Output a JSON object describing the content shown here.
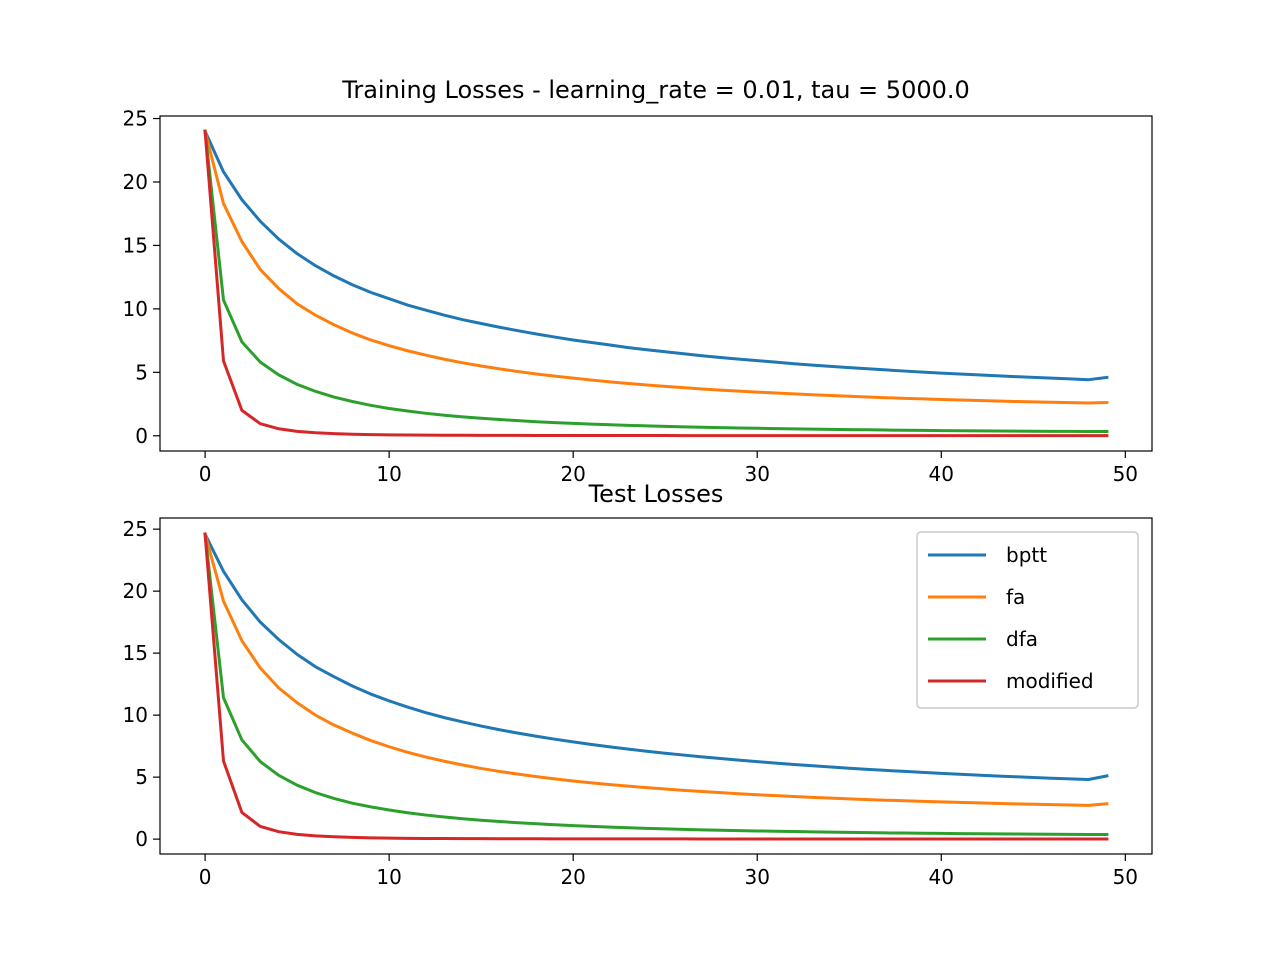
{
  "chart_data": [
    {
      "type": "line",
      "title": "Training Losses - learning_rate = 0.01, tau = 5000.0",
      "xlabel": "",
      "ylabel": "",
      "xlim": [
        -2.45,
        51.45
      ],
      "ylim": [
        -1.2,
        25.2
      ],
      "xticks": [
        0,
        10,
        20,
        30,
        40,
        50
      ],
      "yticks": [
        0,
        5,
        10,
        15,
        20,
        25
      ],
      "legend": false,
      "grid": false,
      "x": [
        0,
        1,
        2,
        3,
        4,
        5,
        6,
        7,
        8,
        9,
        10,
        11,
        12,
        13,
        14,
        15,
        16,
        17,
        18,
        19,
        20,
        21,
        22,
        23,
        24,
        25,
        26,
        27,
        28,
        29,
        30,
        31,
        32,
        33,
        34,
        35,
        36,
        37,
        38,
        39,
        40,
        41,
        42,
        43,
        44,
        45,
        46,
        47,
        48,
        49
      ],
      "series": [
        {
          "name": "bptt",
          "color": "#1f77b4",
          "values": [
            24.0,
            20.8,
            18.6,
            16.9,
            15.5,
            14.35,
            13.4,
            12.6,
            11.9,
            11.3,
            10.8,
            10.3,
            9.9,
            9.5,
            9.15,
            8.85,
            8.55,
            8.28,
            8.02,
            7.78,
            7.55,
            7.35,
            7.15,
            6.95,
            6.78,
            6.62,
            6.46,
            6.31,
            6.17,
            6.04,
            5.92,
            5.8,
            5.68,
            5.57,
            5.47,
            5.37,
            5.28,
            5.19,
            5.1,
            5.02,
            4.94,
            4.87,
            4.8,
            4.73,
            4.66,
            4.6,
            4.54,
            4.48,
            4.42,
            4.6
          ]
        },
        {
          "name": "fa",
          "color": "#ff7f0e",
          "values": [
            24.0,
            18.3,
            15.3,
            13.1,
            11.6,
            10.4,
            9.5,
            8.75,
            8.1,
            7.55,
            7.1,
            6.7,
            6.35,
            6.03,
            5.75,
            5.5,
            5.27,
            5.06,
            4.87,
            4.7,
            4.54,
            4.39,
            4.25,
            4.12,
            4.0,
            3.89,
            3.79,
            3.69,
            3.6,
            3.52,
            3.44,
            3.37,
            3.3,
            3.23,
            3.17,
            3.11,
            3.06,
            3.0,
            2.95,
            2.91,
            2.86,
            2.82,
            2.78,
            2.74,
            2.7,
            2.67,
            2.64,
            2.61,
            2.58,
            2.62
          ]
        },
        {
          "name": "dfa",
          "color": "#2ca02c",
          "values": [
            24.0,
            10.7,
            7.4,
            5.8,
            4.8,
            4.05,
            3.5,
            3.05,
            2.7,
            2.4,
            2.15,
            1.95,
            1.77,
            1.62,
            1.49,
            1.38,
            1.28,
            1.19,
            1.11,
            1.04,
            0.98,
            0.92,
            0.87,
            0.82,
            0.78,
            0.74,
            0.7,
            0.67,
            0.64,
            0.61,
            0.59,
            0.56,
            0.54,
            0.52,
            0.5,
            0.48,
            0.47,
            0.45,
            0.44,
            0.43,
            0.41,
            0.4,
            0.39,
            0.38,
            0.37,
            0.36,
            0.35,
            0.35,
            0.34,
            0.34
          ]
        },
        {
          "name": "modified",
          "color": "#d62728",
          "values": [
            24.0,
            5.9,
            2.0,
            0.95,
            0.55,
            0.35,
            0.24,
            0.17,
            0.12,
            0.09,
            0.07,
            0.06,
            0.05,
            0.04,
            0.04,
            0.03,
            0.03,
            0.03,
            0.02,
            0.02,
            0.02,
            0.02,
            0.02,
            0.02,
            0.02,
            0.02,
            0.01,
            0.01,
            0.01,
            0.01,
            0.01,
            0.01,
            0.01,
            0.01,
            0.01,
            0.01,
            0.01,
            0.01,
            0.01,
            0.01,
            0.01,
            0.01,
            0.01,
            0.01,
            0.01,
            0.01,
            0.01,
            0.01,
            0.01,
            0.01
          ]
        }
      ]
    },
    {
      "type": "line",
      "title": "Test Losses",
      "xlabel": "",
      "ylabel": "",
      "xlim": [
        -2.45,
        51.45
      ],
      "ylim": [
        -1.2,
        25.9
      ],
      "xticks": [
        0,
        10,
        20,
        30,
        40,
        50
      ],
      "yticks": [
        0,
        5,
        10,
        15,
        20,
        25
      ],
      "legend": true,
      "legend_position": "top-right",
      "grid": false,
      "x": [
        0,
        1,
        2,
        3,
        4,
        5,
        6,
        7,
        8,
        9,
        10,
        11,
        12,
        13,
        14,
        15,
        16,
        17,
        18,
        19,
        20,
        21,
        22,
        23,
        24,
        25,
        26,
        27,
        28,
        29,
        30,
        31,
        32,
        33,
        34,
        35,
        36,
        37,
        38,
        39,
        40,
        41,
        42,
        43,
        44,
        45,
        46,
        47,
        48,
        49
      ],
      "series": [
        {
          "name": "bptt",
          "color": "#1f77b4",
          "values": [
            24.6,
            21.6,
            19.3,
            17.5,
            16.1,
            14.9,
            13.9,
            13.1,
            12.35,
            11.7,
            11.15,
            10.65,
            10.2,
            9.8,
            9.45,
            9.12,
            8.82,
            8.55,
            8.3,
            8.06,
            7.84,
            7.63,
            7.44,
            7.26,
            7.09,
            6.93,
            6.78,
            6.63,
            6.5,
            6.37,
            6.25,
            6.13,
            6.02,
            5.92,
            5.82,
            5.72,
            5.63,
            5.54,
            5.46,
            5.38,
            5.3,
            5.23,
            5.16,
            5.09,
            5.03,
            4.97,
            4.91,
            4.86,
            4.81,
            5.1
          ]
        },
        {
          "name": "fa",
          "color": "#ff7f0e",
          "values": [
            24.6,
            19.2,
            16.0,
            13.8,
            12.2,
            11.0,
            10.0,
            9.2,
            8.55,
            7.95,
            7.45,
            7.0,
            6.62,
            6.28,
            5.98,
            5.7,
            5.46,
            5.24,
            5.04,
            4.86,
            4.69,
            4.54,
            4.4,
            4.27,
            4.15,
            4.04,
            3.93,
            3.84,
            3.75,
            3.66,
            3.58,
            3.51,
            3.44,
            3.37,
            3.31,
            3.25,
            3.19,
            3.14,
            3.09,
            3.04,
            3.0,
            2.96,
            2.92,
            2.88,
            2.84,
            2.81,
            2.78,
            2.75,
            2.72,
            2.85
          ]
        },
        {
          "name": "dfa",
          "color": "#2ca02c",
          "values": [
            24.6,
            11.4,
            8.0,
            6.25,
            5.15,
            4.35,
            3.75,
            3.28,
            2.9,
            2.6,
            2.35,
            2.13,
            1.94,
            1.78,
            1.64,
            1.52,
            1.42,
            1.32,
            1.24,
            1.16,
            1.09,
            1.03,
            0.97,
            0.92,
            0.87,
            0.83,
            0.79,
            0.75,
            0.72,
            0.69,
            0.66,
            0.63,
            0.61,
            0.58,
            0.56,
            0.54,
            0.52,
            0.5,
            0.49,
            0.47,
            0.46,
            0.44,
            0.43,
            0.42,
            0.41,
            0.4,
            0.39,
            0.38,
            0.37,
            0.37
          ]
        },
        {
          "name": "modified",
          "color": "#d62728",
          "values": [
            24.6,
            6.3,
            2.15,
            1.02,
            0.6,
            0.38,
            0.26,
            0.19,
            0.14,
            0.1,
            0.08,
            0.06,
            0.05,
            0.05,
            0.04,
            0.04,
            0.03,
            0.03,
            0.03,
            0.02,
            0.02,
            0.02,
            0.02,
            0.02,
            0.02,
            0.02,
            0.02,
            0.01,
            0.01,
            0.01,
            0.01,
            0.01,
            0.01,
            0.01,
            0.01,
            0.01,
            0.01,
            0.01,
            0.01,
            0.01,
            0.01,
            0.01,
            0.01,
            0.01,
            0.01,
            0.01,
            0.01,
            0.01,
            0.01,
            0.01
          ]
        }
      ]
    }
  ]
}
